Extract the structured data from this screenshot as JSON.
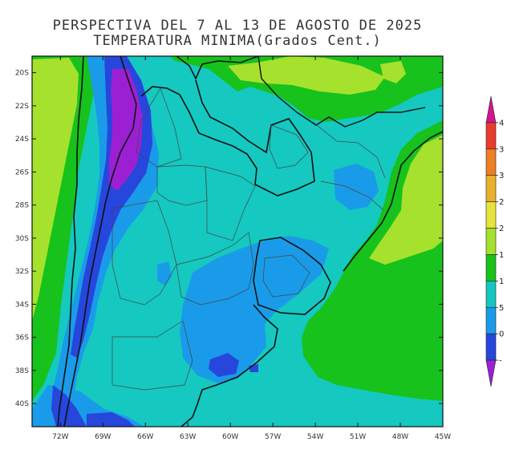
{
  "header": {
    "title_line1": "PERSPECTIVA DEL 7 AL 13 DE AGOSTO DE 2025",
    "title_line2": "TEMPERATURA MINIMA(Grados Cent.)"
  },
  "map": {
    "lat_ticks": [
      "20S",
      "22S",
      "24S",
      "26S",
      "28S",
      "30S",
      "32S",
      "34S",
      "36S",
      "38S",
      "40S"
    ],
    "lon_ticks": [
      "72W",
      "69W",
      "66W",
      "63W",
      "60W",
      "57W",
      "54W",
      "51W",
      "48W",
      "45W"
    ],
    "extent": {
      "lon_min": -74,
      "lon_max": -45,
      "lat_min": -41.4,
      "lat_max": -19.0
    }
  },
  "legend": {
    "labels": [
      "4",
      "3",
      "3",
      "2",
      "2",
      "1",
      "1",
      "5",
      "0",
      "-"
    ],
    "colors": [
      "#d5148c",
      "#e83c2c",
      "#ed7f24",
      "#e9b22c",
      "#e7e33b",
      "#a6e12d",
      "#17c21c",
      "#14c7c0",
      "#1a9be9",
      "#2746dc",
      "#9c20d3"
    ]
  },
  "colors": {
    "frame": "#111111",
    "boundary": "#555555",
    "ocean_land_base": "#15c8c0"
  }
}
